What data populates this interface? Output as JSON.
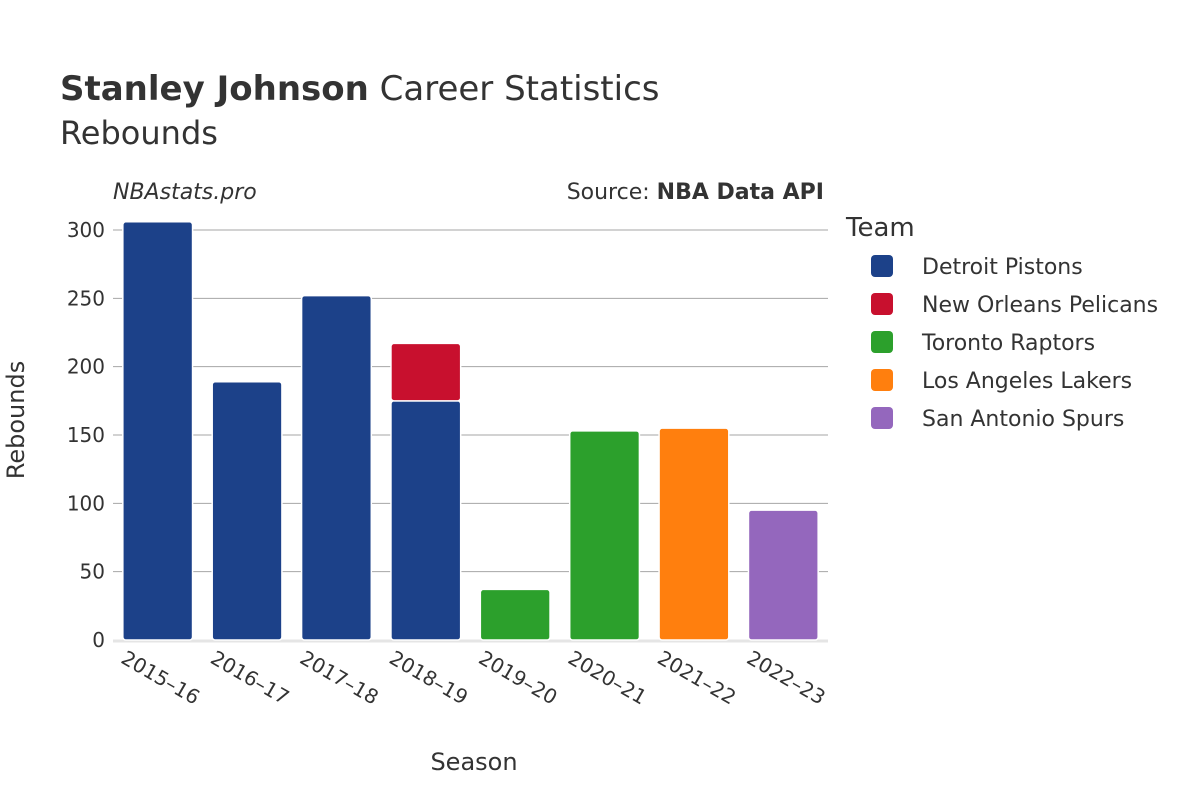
{
  "header": {
    "player": "Stanley Johnson",
    "title_rest": " Career Statistics",
    "subtitle": "Rebounds",
    "site": "NBAstats.pro",
    "source_prefix": "Source: ",
    "source_name": "NBA Data API"
  },
  "chart_data": {
    "type": "bar",
    "stacked": true,
    "title": "Stanley Johnson Career Statistics",
    "subtitle": "Rebounds",
    "xlabel": "Season",
    "ylabel": "Rebounds",
    "ylim": [
      0,
      310
    ],
    "yticks": [
      0,
      50,
      100,
      150,
      200,
      250,
      300
    ],
    "grid": true,
    "legend_title": "Team",
    "legend_position": "right",
    "categories": [
      "2015–16",
      "2016–17",
      "2017–18",
      "2018–19",
      "2019–20",
      "2020–21",
      "2021–22",
      "2022–23"
    ],
    "series": [
      {
        "name": "Detroit Pistons",
        "color": "#1c4189",
        "values": [
          306,
          189,
          252,
          175,
          0,
          0,
          0,
          0
        ]
      },
      {
        "name": "New Orleans Pelicans",
        "color": "#c8102e",
        "values": [
          0,
          0,
          0,
          42,
          0,
          0,
          0,
          0
        ]
      },
      {
        "name": "Toronto Raptors",
        "color": "#2ca02c",
        "values": [
          0,
          0,
          0,
          0,
          37,
          153,
          0,
          0
        ]
      },
      {
        "name": "Los Angeles Lakers",
        "color": "#ff7f0e",
        "values": [
          0,
          0,
          0,
          0,
          0,
          0,
          155,
          0
        ]
      },
      {
        "name": "San Antonio Spurs",
        "color": "#9467bd",
        "values": [
          0,
          0,
          0,
          0,
          0,
          0,
          0,
          95
        ]
      }
    ]
  }
}
